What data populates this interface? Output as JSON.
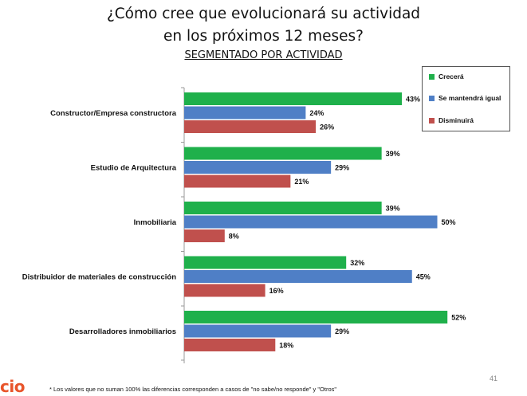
{
  "header": {
    "title_line1": "¿Cómo cree que evolucionará su actividad",
    "title_line2": "en los próximos 12 meses?",
    "subtitle": "SEGMENTADO POR ACTIVIDAD"
  },
  "legend": {
    "items": [
      {
        "label": "Crecerá",
        "color": "#1fb04b"
      },
      {
        "label": "Se mantendrá igual",
        "color": "#4f7fc6"
      },
      {
        "label": "Disminuirá",
        "color": "#c0504d"
      }
    ]
  },
  "chart_data": {
    "type": "bar",
    "orientation": "horizontal",
    "categories": [
      "Constructor/Empresa constructora",
      "Estudio de Arquitectura",
      "Inmobiliaria",
      "Distribuidor de materiales de construcción",
      "Desarrolladores inmobiliarios"
    ],
    "series": [
      {
        "name": "Crecerá",
        "color": "#1fb04b",
        "values": [
          43,
          39,
          39,
          32,
          52
        ]
      },
      {
        "name": "Se mantendrá igual",
        "color": "#4f7fc6",
        "values": [
          24,
          29,
          50,
          45,
          29
        ]
      },
      {
        "name": "Disminuirá",
        "color": "#c0504d",
        "values": [
          26,
          21,
          8,
          16,
          18
        ]
      }
    ],
    "value_suffix": "%",
    "xlim": [
      0,
      100
    ],
    "legend_position": "top-right",
    "grid": false
  },
  "footer": {
    "logo": "cio",
    "footnote": "* Los valores que no suman 100% las diferencias corresponden a casos de \"no sabe/no responde\" y \"Otros\"",
    "page_number": "41"
  }
}
